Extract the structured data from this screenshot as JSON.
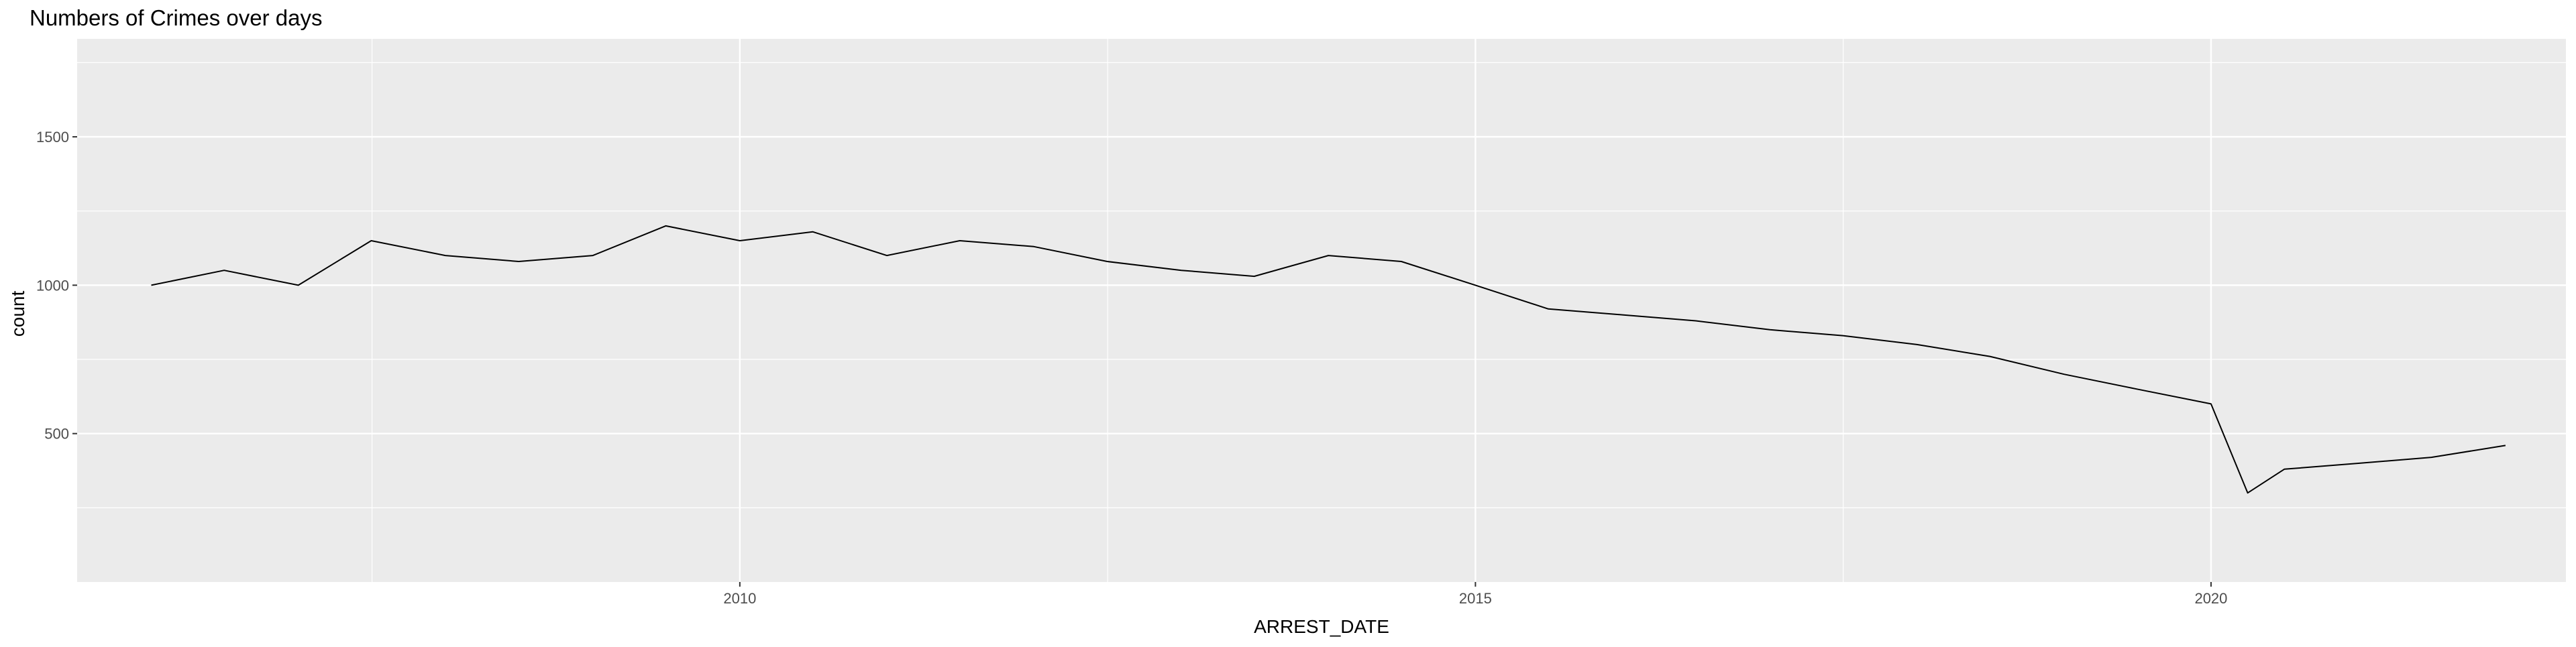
{
  "chart_data": {
    "type": "line",
    "title": "Numbers of Crimes over days",
    "xlabel": "ARREST_DATE",
    "ylabel": "count",
    "x_range": [
      "2005-07-01",
      "2022-05-31"
    ],
    "ylim": [
      0,
      1830
    ],
    "x_ticks": [
      {
        "date": "2010-01-01",
        "label": "2010"
      },
      {
        "date": "2015-01-01",
        "label": "2015"
      },
      {
        "date": "2020-01-01",
        "label": "2020"
      }
    ],
    "y_ticks": [
      {
        "value": 500,
        "label": "500"
      },
      {
        "value": 1000,
        "label": "1000"
      },
      {
        "value": 1500,
        "label": "1500"
      }
    ],
    "panel_background": "#EBEBEB",
    "grid_color": "#FFFFFF",
    "line_color": "#000000",
    "grid": true,
    "legend": "none",
    "series": [
      {
        "x": [
          "2006-01-01",
          "2006-07-01",
          "2007-01-01",
          "2007-07-01",
          "2008-01-01",
          "2008-07-01",
          "2009-01-01",
          "2009-07-01",
          "2010-01-01",
          "2010-07-01",
          "2011-01-01",
          "2011-07-01",
          "2012-01-01",
          "2012-07-01",
          "2013-01-01",
          "2013-07-01",
          "2014-01-01",
          "2014-07-01",
          "2015-01-01",
          "2015-07-01",
          "2016-01-01",
          "2016-07-01",
          "2017-01-01",
          "2017-07-01",
          "2018-01-01",
          "2018-07-01",
          "2019-01-01",
          "2019-07-01",
          "2020-01-01",
          "2020-04-01",
          "2020-07-01",
          "2021-01-01",
          "2021-07-01",
          "2022-01-01"
        ],
        "y": [
          1000,
          1050,
          1000,
          1150,
          1100,
          1080,
          1100,
          1200,
          1150,
          1180,
          1100,
          1150,
          1130,
          1080,
          1050,
          1030,
          1100,
          1080,
          1000,
          920,
          900,
          880,
          850,
          830,
          800,
          760,
          700,
          650,
          600,
          300,
          380,
          400,
          420,
          460
        ]
      }
    ]
  }
}
